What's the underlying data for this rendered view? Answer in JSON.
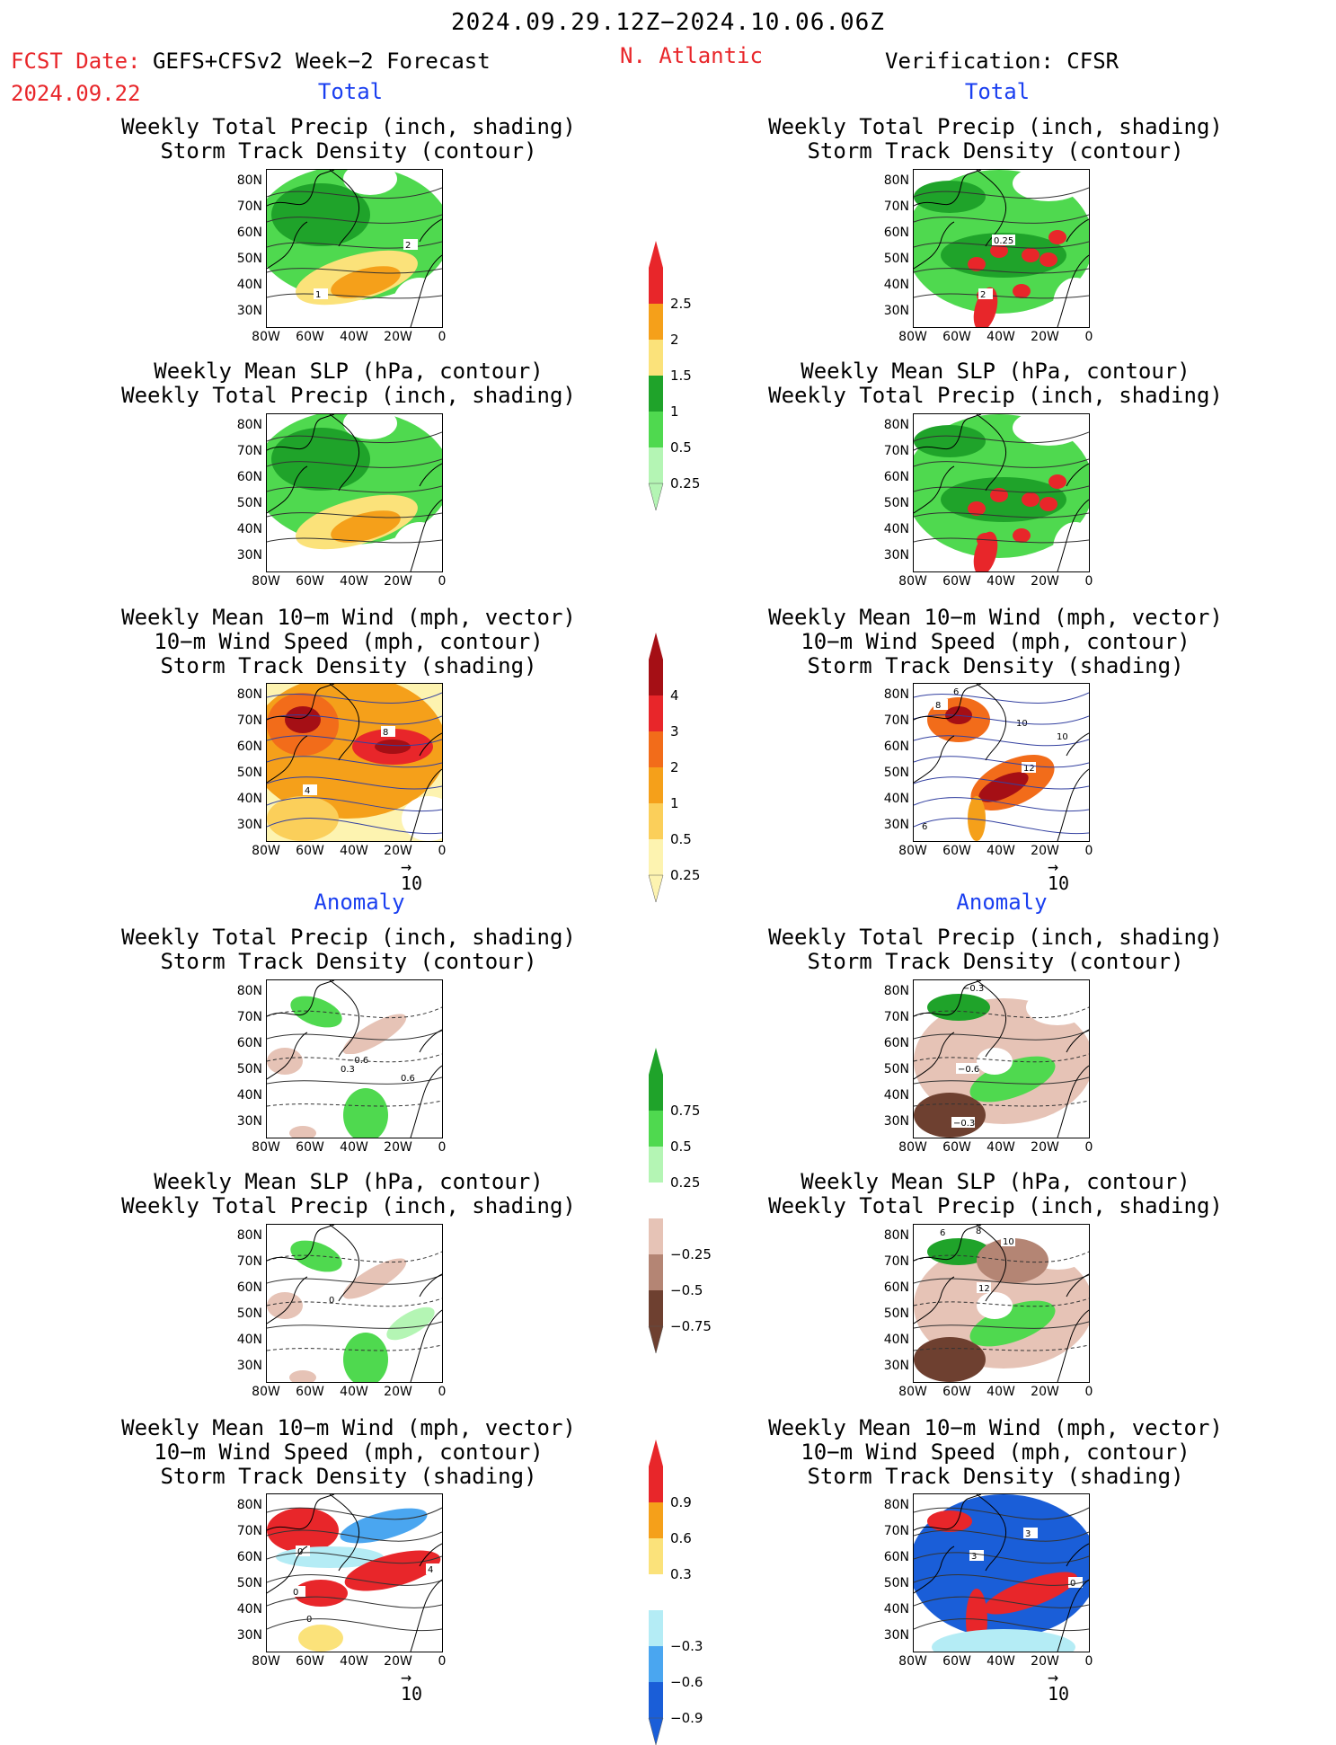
{
  "header": {
    "date_range": "2024.09.29.12Z−2024.10.06.06Z",
    "fcst_label": "FCST Date:",
    "forecast_title": "GEFS+CFSv2 Week−2 Forecast",
    "fcst_date": "2024.09.22",
    "region": "N. Atlantic",
    "verification": "Verification: CFSR"
  },
  "sections": {
    "total": "Total",
    "anomaly": "Anomaly"
  },
  "titles": {
    "precip_storm": "Weekly Total Precip (inch, shading)\nStorm Track Density (contour)",
    "slp_precip": "Weekly Mean SLP (hPa, contour)\nWeekly Total Precip (inch, shading)",
    "wind_storm": "Weekly Mean 10−m Wind (mph, vector)\n10−m Wind Speed (mph, contour)\nStorm Track Density (shading)"
  },
  "axes": {
    "lat_ticks": [
      "80N",
      "70N",
      "60N",
      "50N",
      "40N",
      "30N"
    ],
    "lon_ticks": [
      "80W",
      "60W",
      "40W",
      "20W",
      "0"
    ]
  },
  "vector_ref": {
    "value": "10",
    "arrow": "→"
  },
  "colorbars": {
    "precip_total": {
      "labels": [
        "2.5",
        "2",
        "1.5",
        "1",
        "0.5",
        "0.25"
      ],
      "colors": [
        "#e8262a",
        "#f5a01a",
        "#fbe27a",
        "#1fa32a",
        "#4fd94f",
        "#b4f5b4"
      ]
    },
    "storm_total": {
      "labels": [
        "4",
        "3",
        "2",
        "1",
        "0.5",
        "0.25"
      ],
      "colors": [
        "#a50f15",
        "#e8262a",
        "#f26c1a",
        "#f5a01a",
        "#fbcf5a",
        "#fdf3b0"
      ]
    },
    "precip_anom": {
      "labels": [
        "0.75",
        "0.5",
        "0.25",
        "−0.25",
        "−0.5",
        "−0.75"
      ],
      "colors": [
        "#1fa32a",
        "#4fd94f",
        "#b4f5b4",
        "#ffffff",
        "#e6c3b6",
        "#b48574",
        "#6e4030"
      ]
    },
    "storm_anom": {
      "labels": [
        "0.9",
        "0.6",
        "0.3",
        "−0.3",
        "−0.6",
        "−0.9"
      ],
      "colors": [
        "#e8262a",
        "#f5a01a",
        "#fbe27a",
        "#ffffff",
        "#b4ecf5",
        "#4aa6f0",
        "#1a5ed8"
      ]
    }
  },
  "contour_labels": {
    "fcst_total_precip": [
      "2",
      "1"
    ],
    "verif_total_precip": [
      "0.25",
      "2"
    ],
    "fcst_total_wind": [
      "8",
      "4"
    ],
    "verif_total_wind": [
      "6",
      "8",
      "10",
      "10",
      "12",
      "6"
    ],
    "fcst_anom_precip": [
      "−0.6",
      "0.3",
      "0.6"
    ],
    "verif_anom_precip": [
      "−0.3",
      "−0.6",
      "−0.3"
    ],
    "fcst_anom_slp": [
      "0"
    ],
    "verif_anom_slp": [
      "6",
      "8",
      "10",
      "12"
    ],
    "fcst_anom_wind": [
      "0",
      "4",
      "0",
      "0"
    ],
    "verif_anom_wind": [
      "3",
      "3",
      "0"
    ]
  }
}
